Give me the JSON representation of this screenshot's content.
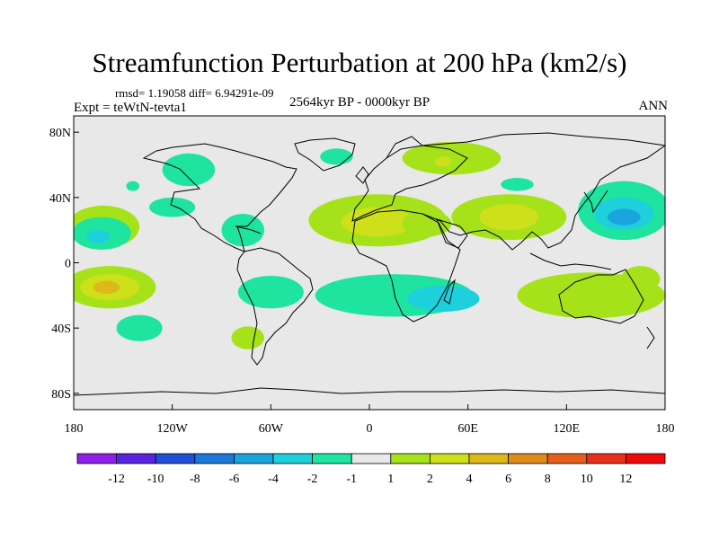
{
  "chart_data": {
    "type": "heatmap",
    "title": "Streamfunction Perturbation at 200 hPa (km2/s)",
    "stats_text": "rmsd= 1.19058 diff= 6.94291e-09",
    "experiment_label": "Expt = teWtN-tevta1",
    "period_label": "2564kyr BP - 0000kyr BP",
    "season_label": "ANN",
    "xlim": [
      -180,
      180
    ],
    "ylim": [
      -90,
      90
    ],
    "x_ticks": [
      {
        "value": -180,
        "label": "180"
      },
      {
        "value": -120,
        "label": "120W"
      },
      {
        "value": -60,
        "label": "60W"
      },
      {
        "value": 0,
        "label": "0"
      },
      {
        "value": 60,
        "label": "60E"
      },
      {
        "value": 120,
        "label": "120E"
      },
      {
        "value": 180,
        "label": "180"
      }
    ],
    "y_ticks": [
      {
        "value": 80,
        "label": "80N"
      },
      {
        "value": 40,
        "label": "40N"
      },
      {
        "value": 0,
        "label": "0"
      },
      {
        "value": -40,
        "label": "40S"
      },
      {
        "value": -80,
        "label": "80S"
      }
    ],
    "colorbar": {
      "labels": [
        "-12",
        "-10",
        "-8",
        "-6",
        "-4",
        "-2",
        "-1",
        "1",
        "2",
        "4",
        "6",
        "8",
        "10",
        "12"
      ],
      "colors": [
        "#8f1fe8",
        "#5a23de",
        "#1f4fd6",
        "#1a79d8",
        "#1aa3dc",
        "#1ecfdc",
        "#1ee4a0",
        "#e8e8e8",
        "#a6e21a",
        "#cde01a",
        "#dcb81a",
        "#e08a1a",
        "#e4601a",
        "#e8301a",
        "#ee0a0a"
      ]
    },
    "regions": [
      {
        "name": "n-pacific-east-positive",
        "lon": -162,
        "lat": 22,
        "rlon": 22,
        "rlat": 13,
        "value": 1.5
      },
      {
        "name": "n-pacific-negative",
        "lon": -163,
        "lat": 18,
        "rlon": 18,
        "rlat": 10,
        "value": -1.5
      },
      {
        "name": "n-pacific-core",
        "lon": -165,
        "lat": 16,
        "rlon": 7,
        "rlat": 4,
        "value": -3
      },
      {
        "name": "s-pacific-positive",
        "lon": -158,
        "lat": -15,
        "rlon": 28,
        "rlat": 13,
        "value": 1.5
      },
      {
        "name": "s-pacific-mid",
        "lon": -158,
        "lat": -15,
        "rlon": 18,
        "rlat": 8,
        "value": 3
      },
      {
        "name": "s-pacific-core",
        "lon": -160,
        "lat": -15,
        "rlon": 8,
        "rlat": 4,
        "value": 5
      },
      {
        "name": "s-pacific-negative",
        "lon": -140,
        "lat": -40,
        "rlon": 14,
        "rlat": 8,
        "value": -1.5
      },
      {
        "name": "n-pacific-small-negative",
        "lon": -144,
        "lat": 47,
        "rlon": 4,
        "rlat": 3,
        "value": -1.5
      },
      {
        "name": "na-arctic-negative",
        "lon": -110,
        "lat": 57,
        "rlon": 16,
        "rlat": 10,
        "value": -1.5
      },
      {
        "name": "mexico-negative",
        "lon": -120,
        "lat": 34,
        "rlon": 14,
        "rlat": 6,
        "value": -1.5
      },
      {
        "name": "caribbean-negative",
        "lon": -77,
        "lat": 20,
        "rlon": 13,
        "rlat": 10,
        "value": -1.5
      },
      {
        "name": "e-pacific-negative",
        "lon": -60,
        "lat": -18,
        "rlon": 20,
        "rlat": 10,
        "value": -1.5
      },
      {
        "name": "s-america-positive",
        "lon": -74,
        "lat": -46,
        "rlon": 10,
        "rlat": 7,
        "value": 1.5
      },
      {
        "name": "greenland-negative",
        "lon": -20,
        "lat": 65,
        "rlon": 10,
        "rlat": 5,
        "value": -1.5
      },
      {
        "name": "atlantic-africa-positive",
        "lon": 5,
        "lat": 26,
        "rlon": 42,
        "rlat": 16,
        "value": 1.5
      },
      {
        "name": "n-africa-mid",
        "lon": 5,
        "lat": 25,
        "rlon": 22,
        "rlat": 9,
        "value": 3
      },
      {
        "name": "europe-positive",
        "lon": 50,
        "lat": 64,
        "rlon": 30,
        "rlat": 10,
        "value": 1.5
      },
      {
        "name": "europe-core",
        "lon": 45,
        "lat": 62,
        "rlon": 5,
        "rlat": 3,
        "value": 3
      },
      {
        "name": "w-asia-negative",
        "lon": 90,
        "lat": 48,
        "rlon": 10,
        "rlat": 4,
        "value": -1.5
      },
      {
        "name": "asia-positive",
        "lon": 85,
        "lat": 28,
        "rlon": 35,
        "rlat": 14,
        "value": 1.5
      },
      {
        "name": "asia-mid",
        "lon": 85,
        "lat": 28,
        "rlon": 18,
        "rlat": 8,
        "value": 3
      },
      {
        "name": "arabian-positive",
        "lon": 35,
        "lat": 24,
        "rlon": 15,
        "rlat": 8,
        "value": 1.5
      },
      {
        "name": "s-atlantic-indian-negative",
        "lon": 15,
        "lat": -20,
        "rlon": 48,
        "rlat": 13,
        "value": -1.5
      },
      {
        "name": "madagascar-negative",
        "lon": 45,
        "lat": -22,
        "rlon": 22,
        "rlat": 8,
        "value": -3
      },
      {
        "name": "nw-pacific-negative",
        "lon": 155,
        "lat": 32,
        "rlon": 28,
        "rlat": 18,
        "value": -1.5
      },
      {
        "name": "nw-pacific-mid",
        "lon": 155,
        "lat": 30,
        "rlon": 18,
        "rlat": 10,
        "value": -3
      },
      {
        "name": "nw-pacific-core",
        "lon": 155,
        "lat": 28,
        "rlon": 10,
        "rlat": 5,
        "value": -5
      },
      {
        "name": "australia-positive",
        "lon": 135,
        "lat": -20,
        "rlon": 45,
        "rlat": 14,
        "value": 1.5
      },
      {
        "name": "aus-east-positive",
        "lon": 165,
        "lat": -10,
        "rlon": 12,
        "rlat": 8,
        "value": 1.5
      }
    ]
  }
}
